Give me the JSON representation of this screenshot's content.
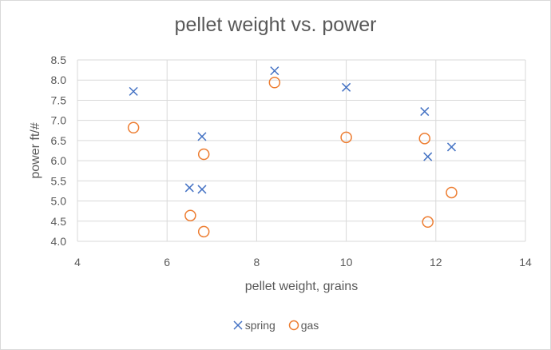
{
  "chart_data": {
    "type": "scatter",
    "title": "pellet weight vs. power",
    "xlabel": "pellet weight, grains",
    "ylabel": "power ft/#",
    "xlim": [
      4,
      14
    ],
    "ylim": [
      4.0,
      8.5
    ],
    "x_ticks": [
      "4",
      "6",
      "8",
      "10",
      "12",
      "14"
    ],
    "y_ticks": [
      "4.0",
      "4.5",
      "5.0",
      "5.5",
      "6.0",
      "6.5",
      "7.0",
      "7.5",
      "8.0",
      "8.5"
    ],
    "grid": true,
    "legend_position": "bottom",
    "series": [
      {
        "name": "spring",
        "marker": "x",
        "color": "#4472C4",
        "points": [
          [
            5.25,
            7.72
          ],
          [
            6.5,
            5.33
          ],
          [
            6.78,
            6.6
          ],
          [
            6.78,
            5.29
          ],
          [
            8.4,
            8.23
          ],
          [
            10.0,
            7.82
          ],
          [
            11.75,
            7.22
          ],
          [
            11.82,
            6.1
          ],
          [
            12.35,
            6.34
          ]
        ]
      },
      {
        "name": "gas",
        "marker": "circle",
        "color": "#ED7D31",
        "points": [
          [
            5.25,
            6.82
          ],
          [
            6.52,
            4.64
          ],
          [
            6.82,
            6.16
          ],
          [
            6.82,
            4.24
          ],
          [
            8.4,
            7.94
          ],
          [
            10.0,
            6.58
          ],
          [
            11.75,
            6.55
          ],
          [
            11.82,
            4.48
          ],
          [
            12.35,
            5.21
          ]
        ]
      }
    ]
  }
}
